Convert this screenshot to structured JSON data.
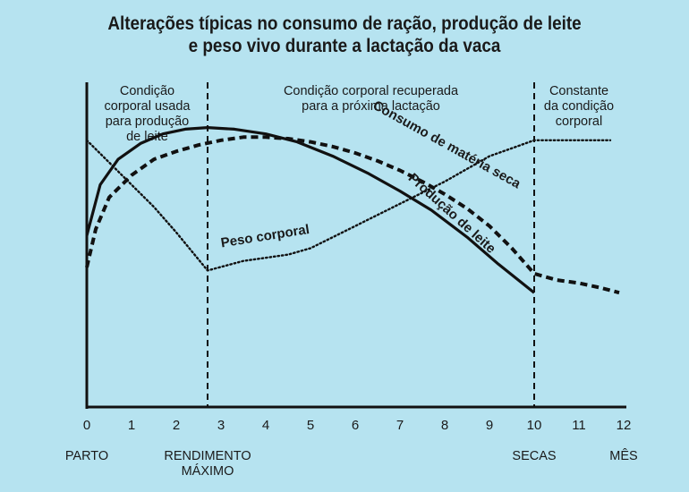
{
  "title_line1": "Alterações típicas no consumo de ração, produção de leite",
  "title_line2": "e peso vivo durante a lactação da vaca",
  "chart_data": {
    "type": "line",
    "title": "Alterações típicas no consumo de ração, produção de leite e peso vivo durante a lactação da vaca",
    "xlabel": "MÊS",
    "xlim": [
      0,
      12
    ],
    "ylim": [
      0,
      100
    ],
    "x_ticks": [
      0,
      1,
      2,
      3,
      4,
      5,
      6,
      7,
      8,
      9,
      10,
      11,
      12
    ],
    "x_landmarks": [
      {
        "x": 0,
        "label": "PARTO"
      },
      {
        "x": 2.7,
        "label": "RENDIMENTO\nMÁXIMO"
      },
      {
        "x": 10,
        "label": "SECAS"
      },
      {
        "x": 12,
        "label": "MÊS"
      }
    ],
    "phase_dividers": [
      2.7,
      10
    ],
    "phases": [
      {
        "label": "Condição\ncorporal usada\npara produção\nde leite"
      },
      {
        "label": "Condição corporal recuperada\npara a próxima lactação"
      },
      {
        "label": "Constante\nda condição\ncorporal"
      }
    ],
    "series": [
      {
        "name": "Produção de leite",
        "style": "solid",
        "x": [
          0,
          0.3,
          0.7,
          1.2,
          1.7,
          2.2,
          2.7,
          3.3,
          4,
          4.7,
          5.5,
          6.3,
          7,
          7.7,
          8.5,
          9.2,
          10
        ],
        "y": [
          54,
          70,
          78,
          83,
          86,
          87.5,
          88,
          87.5,
          86,
          83.5,
          79,
          73.5,
          68,
          62,
          53.5,
          45,
          36
        ]
      },
      {
        "name": "Consumo de matéria seca",
        "style": "dashed",
        "x": [
          0,
          0.2,
          0.5,
          1,
          1.5,
          2,
          2.5,
          3,
          3.5,
          4,
          4.5,
          5,
          5.5,
          6,
          6.5,
          7,
          7.5,
          8,
          8.5,
          9,
          9.5,
          10,
          10.5,
          11,
          11.5,
          11.9
        ],
        "y": [
          44,
          56,
          66,
          73,
          78,
          80.5,
          82.5,
          84,
          85,
          85,
          84.5,
          83.5,
          82,
          80,
          77.5,
          74.5,
          71,
          67,
          62.5,
          57,
          50,
          42,
          40,
          39,
          37.5,
          36
        ]
      },
      {
        "name": "Peso corporal",
        "style": "dotted",
        "x": [
          0,
          0.5,
          1,
          1.5,
          2,
          2.7,
          3.5,
          4.5,
          5,
          6,
          7,
          8,
          9,
          10,
          11,
          11.7
        ],
        "y": [
          84,
          77,
          70,
          63,
          55,
          43,
          46,
          48,
          50,
          57,
          64,
          71,
          79,
          84,
          84,
          84
        ]
      }
    ]
  }
}
